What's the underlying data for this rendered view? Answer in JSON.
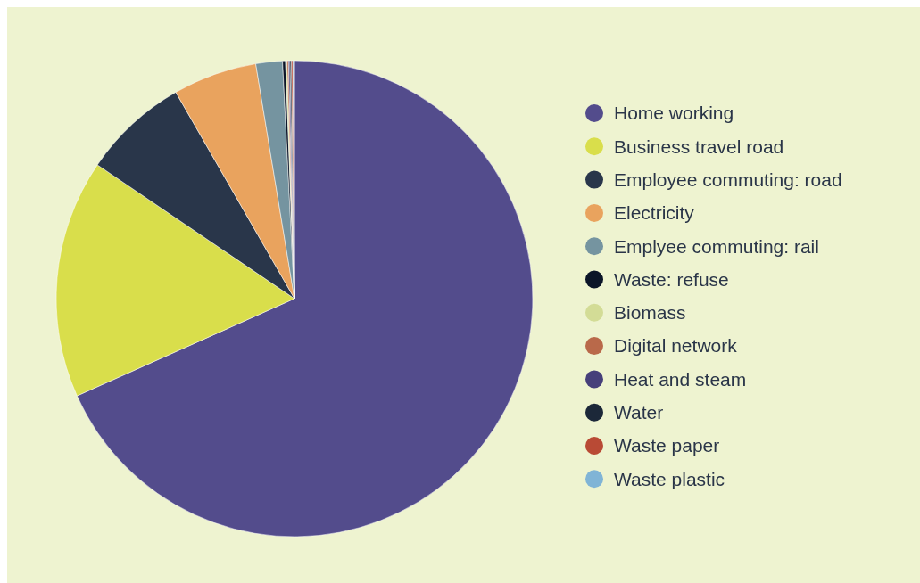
{
  "chart_data": {
    "type": "pie",
    "categories": [
      "Home working",
      "Business travel road",
      "Employee commuting: road",
      "Electricity",
      "Emplyee commuting: rail",
      "Waste: refuse",
      "Biomass",
      "Digital network",
      "Heat and steam",
      "Water",
      "Waste paper",
      "Waste plastic"
    ],
    "values": [
      68.3,
      16.2,
      7.2,
      5.7,
      1.8,
      0.2,
      0.1,
      0.1,
      0.1,
      0.1,
      0.1,
      0.1
    ],
    "colors": [
      "#534c8c",
      "#d9de4b",
      "#29364a",
      "#e9a35e",
      "#7594a0",
      "#0b1528",
      "#d3dc96",
      "#b9694a",
      "#463f7a",
      "#1c2839",
      "#b94a35",
      "#80b4d6"
    ],
    "legend": "right"
  }
}
